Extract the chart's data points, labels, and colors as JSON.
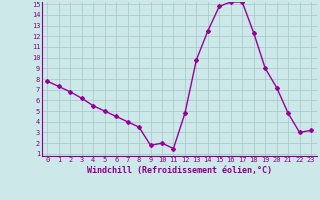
{
  "x": [
    0,
    1,
    2,
    3,
    4,
    5,
    6,
    7,
    8,
    9,
    10,
    11,
    12,
    13,
    14,
    15,
    16,
    17,
    18,
    19,
    20,
    21,
    22,
    23
  ],
  "y": [
    7.8,
    7.3,
    6.8,
    6.2,
    5.5,
    5.0,
    4.5,
    4.0,
    3.5,
    1.8,
    2.0,
    1.5,
    4.8,
    9.8,
    12.5,
    14.8,
    15.2,
    15.2,
    12.3,
    9.0,
    7.2,
    4.8,
    3.0,
    3.2
  ],
  "line_color": "#990099",
  "marker": "D",
  "markersize": 2,
  "bg_color": "#cce8e8",
  "grid_color": "#aacccc",
  "xlabel": "Windchill (Refroidissement éolien,°C)",
  "xlabel_color": "#880088",
  "tick_color": "#880088",
  "ylim": [
    1,
    15
  ],
  "xlim": [
    -0.5,
    23.5
  ],
  "yticks": [
    1,
    2,
    3,
    4,
    5,
    6,
    7,
    8,
    9,
    10,
    11,
    12,
    13,
    14,
    15
  ],
  "xticks": [
    0,
    1,
    2,
    3,
    4,
    5,
    6,
    7,
    8,
    9,
    10,
    11,
    12,
    13,
    14,
    15,
    16,
    17,
    18,
    19,
    20,
    21,
    22,
    23
  ],
  "tick_fontsize": 5,
  "xlabel_fontsize": 6,
  "linewidth": 1.0
}
